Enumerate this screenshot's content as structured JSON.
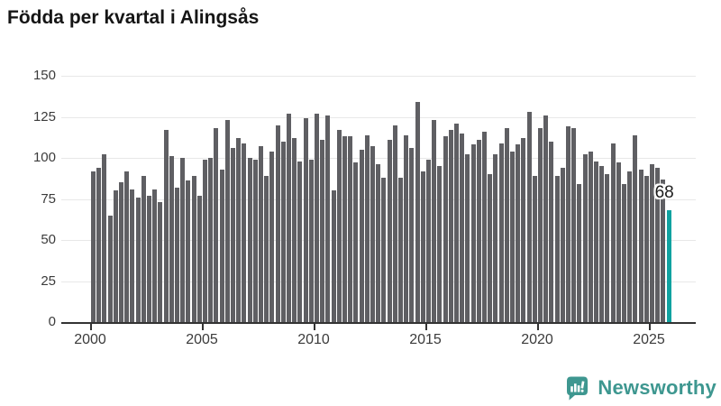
{
  "chart_data": {
    "type": "bar",
    "title": "Födda per kvartal i Alingsås",
    "xlabel": "",
    "ylabel": "",
    "ylim": [
      0,
      150
    ],
    "grid": "horizontal",
    "y_ticks": [
      0,
      25,
      50,
      75,
      100,
      125,
      150
    ],
    "x_tick_years": [
      "2000",
      "2005",
      "2010",
      "2015",
      "2020",
      "2025"
    ],
    "bar_color": "#5f5f63",
    "highlight_color": "#10a2a0",
    "years": [
      {
        "year": 2000,
        "q": [
          92,
          94,
          102,
          65
        ]
      },
      {
        "year": 2001,
        "q": [
          80,
          85,
          92,
          81
        ]
      },
      {
        "year": 2002,
        "q": [
          76,
          89,
          77,
          81
        ]
      },
      {
        "year": 2003,
        "q": [
          73,
          117,
          101,
          82
        ]
      },
      {
        "year": 2004,
        "q": [
          100,
          86,
          89,
          77
        ]
      },
      {
        "year": 2005,
        "q": [
          99,
          100,
          118,
          93
        ]
      },
      {
        "year": 2006,
        "q": [
          123,
          106,
          112,
          109
        ]
      },
      {
        "year": 2007,
        "q": [
          100,
          99,
          107,
          89
        ]
      },
      {
        "year": 2008,
        "q": [
          104,
          120,
          110,
          127
        ]
      },
      {
        "year": 2009,
        "q": [
          112,
          98,
          124,
          99
        ]
      },
      {
        "year": 2010,
        "q": [
          127,
          111,
          126,
          80
        ]
      },
      {
        "year": 2011,
        "q": [
          117,
          113,
          113,
          97
        ]
      },
      {
        "year": 2012,
        "q": [
          105,
          114,
          107,
          96
        ]
      },
      {
        "year": 2013,
        "q": [
          88,
          111,
          120,
          88
        ]
      },
      {
        "year": 2014,
        "q": [
          114,
          106,
          134,
          92
        ]
      },
      {
        "year": 2015,
        "q": [
          99,
          123,
          95,
          113
        ]
      },
      {
        "year": 2016,
        "q": [
          117,
          121,
          115,
          102
        ]
      },
      {
        "year": 2017,
        "q": [
          108,
          111,
          116,
          90
        ]
      },
      {
        "year": 2018,
        "q": [
          102,
          109,
          118,
          104
        ]
      },
      {
        "year": 2019,
        "q": [
          108,
          112,
          128,
          89
        ]
      },
      {
        "year": 2020,
        "q": [
          118,
          126,
          110,
          89
        ]
      },
      {
        "year": 2021,
        "q": [
          94,
          119,
          118,
          84
        ]
      },
      {
        "year": 2022,
        "q": [
          102,
          104,
          98,
          95
        ]
      },
      {
        "year": 2023,
        "q": [
          90,
          109,
          97,
          84
        ]
      },
      {
        "year": 2024,
        "q": [
          92,
          114,
          93,
          89
        ]
      },
      {
        "year": 2025,
        "q": [
          96,
          94,
          87,
          68
        ]
      }
    ],
    "annotation": {
      "text": "68",
      "value": 68,
      "target": "last-bar"
    },
    "legend": null
  },
  "logo": {
    "text": "Newsworthy",
    "icon": "newsworthy-bar-chart-bubble-icon",
    "color": "#3e9790"
  }
}
